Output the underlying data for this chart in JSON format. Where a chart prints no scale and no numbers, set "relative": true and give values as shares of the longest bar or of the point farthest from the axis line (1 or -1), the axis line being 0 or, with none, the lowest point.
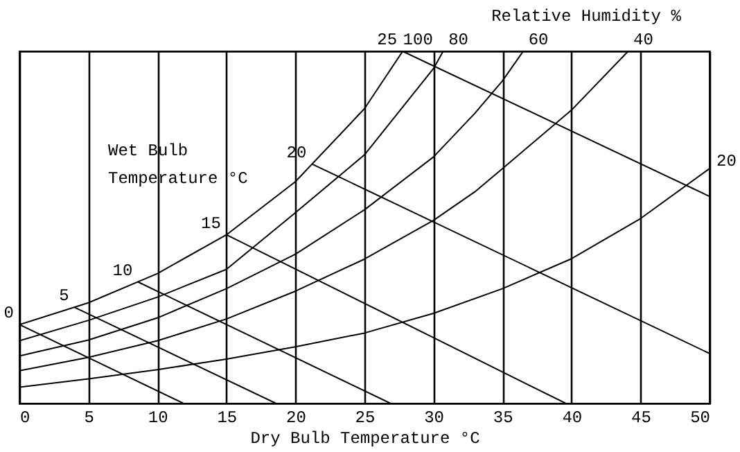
{
  "chart_data": {
    "type": "line",
    "title": "Relative Humidity %",
    "xlabel": "Dry Bulb Temperature °C",
    "annotations": [
      "Wet Bulb\nTemperature °C"
    ],
    "relative": true,
    "xlim": [
      0,
      50
    ],
    "xticks": [
      0,
      5,
      10,
      15,
      20,
      25,
      30,
      35,
      40,
      45,
      50
    ],
    "grid": "x",
    "series": [
      {
        "name": "100",
        "color": "#000000",
        "type": "line",
        "x": [
          0,
          5,
          10,
          15,
          20,
          25,
          27.77
        ],
        "values": [
          0.224,
          0.286,
          0.369,
          0.479,
          0.63,
          0.837,
          1
        ]
      },
      {
        "name": "80",
        "color": "#000000",
        "type": "line",
        "x": [
          0,
          5,
          10,
          15,
          20,
          25,
          30,
          30.7
        ],
        "values": [
          0.178,
          0.236,
          0.302,
          0.381,
          0.542,
          0.706,
          0.951,
          1
        ]
      },
      {
        "name": "60",
        "color": "#000000",
        "type": "line",
        "x": [
          0,
          5,
          10,
          15,
          20,
          25,
          30,
          33,
          35,
          36.5
        ],
        "values": [
          0.135,
          0.18,
          0.243,
          0.326,
          0.424,
          0.55,
          0.7,
          0.824,
          0.916,
          1
        ]
      },
      {
        "name": "40",
        "color": "#000000",
        "type": "line",
        "x": [
          0,
          5,
          10,
          15,
          20,
          25,
          30,
          33,
          35,
          40,
          44.1
        ],
        "values": [
          0.093,
          0.131,
          0.178,
          0.24,
          0.319,
          0.41,
          0.52,
          0.601,
          0.667,
          0.833,
          1
        ]
      },
      {
        "name": "20",
        "color": "#000000",
        "type": "line",
        "x": [
          0,
          5,
          10,
          15,
          20,
          25,
          30,
          35,
          40,
          45,
          50
        ],
        "values": [
          0.046,
          0.07,
          0.096,
          0.126,
          0.161,
          0.2,
          0.256,
          0.326,
          0.411,
          0.525,
          0.667
        ]
      },
      {
        "name": "0",
        "color": "#000000",
        "type": "line",
        "x": [
          0,
          11.9
        ],
        "values": [
          0.224,
          0
        ]
      },
      {
        "name": "5",
        "color": "#000000",
        "type": "line",
        "x": [
          4,
          18.6
        ],
        "values": [
          0.273,
          0
        ]
      },
      {
        "name": "10",
        "color": "#000000",
        "type": "line",
        "x": [
          8.6,
          26.9
        ],
        "values": [
          0.345,
          0
        ]
      },
      {
        "name": "15",
        "color": "#000000",
        "type": "line",
        "x": [
          15,
          39.6
        ],
        "values": [
          0.479,
          0
        ]
      },
      {
        "name": "20",
        "color": "#000000",
        "type": "line",
        "x": [
          21.2,
          50
        ],
        "values": [
          0.68,
          0.142
        ]
      },
      {
        "name": "25",
        "color": "#000000",
        "x": [
          27.77,
          50
        ],
        "values": [
          1,
          0.588
        ]
      }
    ]
  }
}
